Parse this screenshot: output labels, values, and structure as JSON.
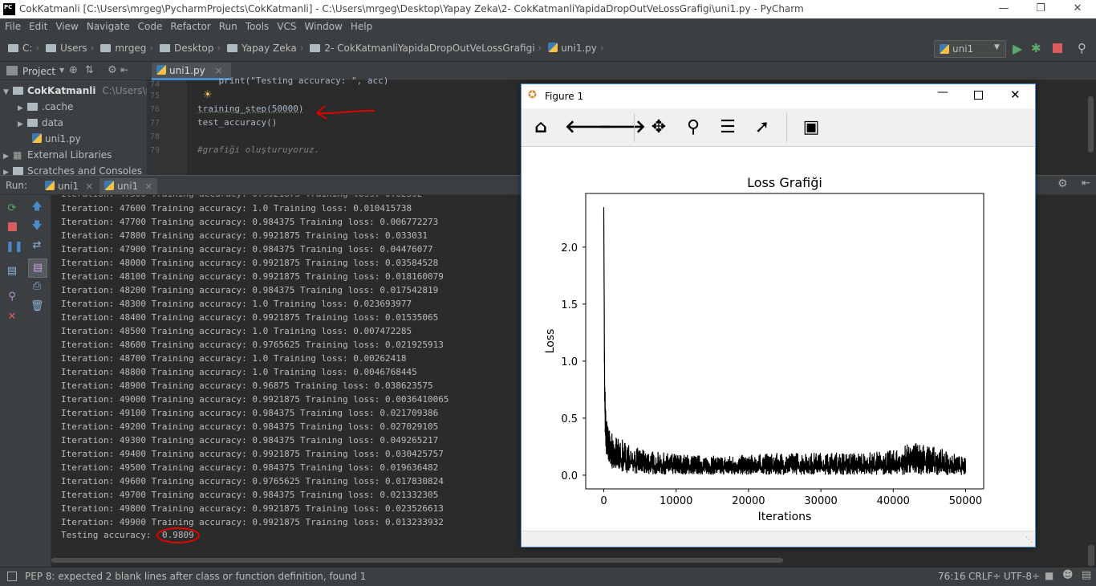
{
  "window": {
    "title": "CokKatmanli [C:\\Users\\mrgeg\\PycharmProjects\\CokKatmanli] - C:\\Users\\mrgeg\\Desktop\\Yapay Zeka\\2- CokKatmanliYapidaDropOutVeLossGrafigi\\uni1.py - PyCharm",
    "logo": "PC"
  },
  "menu": [
    "File",
    "Edit",
    "View",
    "Navigate",
    "Code",
    "Refactor",
    "Run",
    "Tools",
    "VCS",
    "Window",
    "Help"
  ],
  "breadcrumbs": [
    "C:",
    "Users",
    "mrgeg",
    "Desktop",
    "Yapay Zeka",
    "2- CokKatmanliYapidaDropOutVeLossGrafigi",
    "uni1.py"
  ],
  "run_config": {
    "name": "uni1"
  },
  "project_panel": {
    "label": "Project",
    "root": {
      "name": "CokKatmanli",
      "path": "C:\\Users\\mrg"
    },
    "items": [
      ".cache",
      "data",
      "uni1.py"
    ],
    "external": "External Libraries",
    "scratches": "Scratches and Consoles"
  },
  "editor": {
    "tab": "uni1.py",
    "lines": [
      {
        "num": "74",
        "text": "    print(\"Testing accuracy: \", acc)"
      },
      {
        "num": "75",
        "text": ""
      },
      {
        "num": "76",
        "text": "training_step(50000)"
      },
      {
        "num": "77",
        "text": "test_accuracy()"
      },
      {
        "num": "78",
        "text": ""
      },
      {
        "num": "79",
        "text": "#grafiği oluşturuyoruz."
      }
    ]
  },
  "run_panel": {
    "label": "Run:",
    "tabs": [
      "uni1",
      "uni1"
    ]
  },
  "console": {
    "lines": [
      "Iteration: 47600 Training accuracy: 1.0 Training loss: 0.010415738",
      "Iteration: 47700 Training accuracy: 0.984375 Training loss: 0.006772273",
      "Iteration: 47800 Training accuracy: 0.9921875 Training loss: 0.033031",
      "Iteration: 47900 Training accuracy: 0.984375 Training loss: 0.04476077",
      "Iteration: 48000 Training accuracy: 0.9921875 Training loss: 0.03584528",
      "Iteration: 48100 Training accuracy: 0.9921875 Training loss: 0.018160079",
      "Iteration: 48200 Training accuracy: 0.984375 Training loss: 0.017542819",
      "Iteration: 48300 Training accuracy: 1.0 Training loss: 0.023693977",
      "Iteration: 48400 Training accuracy: 0.9921875 Training loss: 0.01535065",
      "Iteration: 48500 Training accuracy: 1.0 Training loss: 0.007472285",
      "Iteration: 48600 Training accuracy: 0.9765625 Training loss: 0.021925913",
      "Iteration: 48700 Training accuracy: 1.0 Training loss: 0.00262418",
      "Iteration: 48800 Training accuracy: 1.0 Training loss: 0.0046768445",
      "Iteration: 48900 Training accuracy: 0.96875 Training loss: 0.038623575",
      "Iteration: 49000 Training accuracy: 0.9921875 Training loss: 0.0036410065",
      "Iteration: 49100 Training accuracy: 0.984375 Training loss: 0.021709386",
      "Iteration: 49200 Training accuracy: 0.984375 Training loss: 0.027029105",
      "Iteration: 49300 Training accuracy: 0.984375 Training loss: 0.049265217",
      "Iteration: 49400 Training accuracy: 0.9921875 Training loss: 0.030425757",
      "Iteration: 49500 Training accuracy: 0.984375 Training loss: 0.019636482",
      "Iteration: 49600 Training accuracy: 0.9765625 Training loss: 0.017830824",
      "Iteration: 49700 Training accuracy: 0.984375 Training loss: 0.021332305",
      "Iteration: 49800 Training accuracy: 0.9921875 Training loss: 0.023526613",
      "Iteration: 49900 Training accuracy: 0.9921875 Training loss: 0.013233932"
    ],
    "testing_label": "Testing accuracy:",
    "testing_value": "0.9809"
  },
  "status": {
    "message": "PEP 8: expected 2 blank lines after class or function definition, found 1",
    "position": "76:16",
    "line_sep": "CRLF÷",
    "encoding": "UTF-8÷"
  },
  "figure": {
    "title": "Figure 1",
    "toolbar_icons": [
      "home-icon",
      "back-icon",
      "forward-icon",
      "pan-icon",
      "zoom-icon",
      "configure-icon",
      "edit-axes-icon",
      "save-icon"
    ]
  },
  "chart_data": {
    "type": "line",
    "title": "Loss Grafiği",
    "xlabel": "Iterations",
    "ylabel": "Loss",
    "xlim": [
      -2500,
      52500
    ],
    "ylim": [
      -0.12,
      2.47
    ],
    "xticks": [
      0,
      10000,
      20000,
      30000,
      40000,
      50000
    ],
    "yticks": [
      0.0,
      0.5,
      1.0,
      1.5,
      2.0
    ],
    "ytick_labels": [
      "0.0",
      "0.5",
      "1.0",
      "1.5",
      "2.0"
    ],
    "color": "#000000",
    "grid": false,
    "series": [
      {
        "x": [
          0,
          100,
          200,
          300,
          500,
          800,
          1200,
          2000,
          3000,
          5000,
          8000,
          12000,
          16000,
          20000,
          25000,
          30000,
          35000,
          40000,
          43000,
          46000,
          50000
        ],
        "upper": [
          2.35,
          1.2,
          0.7,
          0.55,
          0.45,
          0.4,
          0.38,
          0.33,
          0.3,
          0.23,
          0.2,
          0.18,
          0.17,
          0.18,
          0.2,
          0.2,
          0.2,
          0.22,
          0.3,
          0.25,
          0.15
        ],
        "lower": [
          2.35,
          0.6,
          0.3,
          0.2,
          0.12,
          0.08,
          0.05,
          0.03,
          0.02,
          0.01,
          0.005,
          0.005,
          0.003,
          0.003,
          0.003,
          0.003,
          0.002,
          0.002,
          0.002,
          0.002,
          0.002
        ]
      }
    ]
  }
}
